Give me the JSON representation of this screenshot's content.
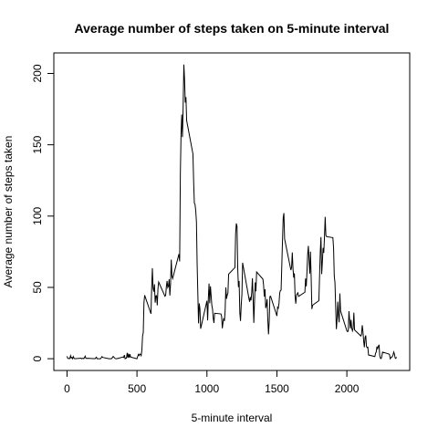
{
  "chart_data": {
    "type": "line",
    "title": "Average number of steps taken on 5-minute interval",
    "x_label": "5-minute interval",
    "y_label": "Average number of steps taken",
    "color": "#000000",
    "x": [
      0,
      5,
      10,
      15,
      20,
      25,
      30,
      35,
      40,
      45,
      50,
      55,
      100,
      105,
      110,
      115,
      120,
      130,
      135,
      140,
      150,
      200,
      210,
      215,
      220,
      230,
      240,
      250,
      255,
      300,
      315,
      320,
      330,
      340,
      345,
      350,
      355,
      400,
      405,
      410,
      415,
      420,
      425,
      430,
      435,
      440,
      445,
      450,
      455,
      500,
      505,
      510,
      515,
      520,
      525,
      530,
      535,
      540,
      545,
      550,
      555,
      600,
      605,
      610,
      615,
      620,
      625,
      630,
      635,
      640,
      645,
      650,
      655,
      700,
      705,
      710,
      715,
      720,
      725,
      730,
      735,
      740,
      745,
      750,
      755,
      800,
      805,
      810,
      815,
      820,
      825,
      830,
      835,
      840,
      845,
      850,
      855,
      900,
      905,
      910,
      915,
      920,
      925,
      930,
      935,
      940,
      945,
      950,
      955,
      1000,
      1005,
      1010,
      1015,
      1020,
      1025,
      1030,
      1035,
      1040,
      1045,
      1050,
      1055,
      1100,
      1105,
      1110,
      1115,
      1120,
      1125,
      1130,
      1135,
      1140,
      1145,
      1150,
      1155,
      1200,
      1205,
      1210,
      1215,
      1220,
      1225,
      1230,
      1235,
      1240,
      1245,
      1250,
      1255,
      1300,
      1305,
      1310,
      1315,
      1320,
      1325,
      1330,
      1335,
      1340,
      1345,
      1350,
      1355,
      1400,
      1405,
      1410,
      1415,
      1420,
      1425,
      1430,
      1435,
      1440,
      1445,
      1450,
      1455,
      1500,
      1505,
      1510,
      1515,
      1520,
      1525,
      1530,
      1535,
      1540,
      1545,
      1550,
      1555,
      1600,
      1605,
      1610,
      1615,
      1620,
      1625,
      1630,
      1635,
      1640,
      1645,
      1650,
      1655,
      1700,
      1705,
      1710,
      1715,
      1720,
      1725,
      1730,
      1735,
      1740,
      1745,
      1750,
      1755,
      1800,
      1805,
      1810,
      1815,
      1820,
      1825,
      1830,
      1835,
      1840,
      1845,
      1850,
      1855,
      1900,
      1905,
      1910,
      1915,
      1920,
      1925,
      1930,
      1935,
      1940,
      1945,
      1950,
      1955,
      2000,
      2005,
      2010,
      2015,
      2020,
      2025,
      2030,
      2035,
      2040,
      2045,
      2050,
      2055,
      2100,
      2105,
      2110,
      2115,
      2120,
      2125,
      2130,
      2135,
      2140,
      2145,
      2150,
      2155,
      2200,
      2205,
      2210,
      2215,
      2220,
      2225,
      2230,
      2235,
      2240,
      2245,
      2250,
      2255,
      2300,
      2305,
      2310,
      2315,
      2320,
      2325,
      2330,
      2335,
      2340,
      2345,
      2350,
      2355
    ],
    "values": [
      1.7,
      0.3,
      0.1,
      0.2,
      0.1,
      2.1,
      0.5,
      0.9,
      0,
      1.5,
      0.4,
      0,
      0.4,
      0,
      0.2,
      0.3,
      0,
      1.8,
      0.2,
      0.2,
      0.3,
      0,
      1.1,
      0,
      0,
      0,
      0,
      1.5,
      0.9,
      0,
      0,
      0.2,
      1.6,
      0.5,
      0.1,
      0,
      0,
      1.2,
      0.9,
      2.6,
      0,
      0.3,
      0.4,
      4.1,
      0.7,
      3.5,
      0.8,
      3.1,
      1.1,
      0,
      1.6,
      3,
      2.2,
      3.3,
      3,
      2.1,
      6.1,
      16,
      18.3,
      39.5,
      44.5,
      31.5,
      49.3,
      63.5,
      49.5,
      47,
      52.2,
      39.3,
      44,
      44.2,
      37.4,
      49,
      53.8,
      43.8,
      44.4,
      50.5,
      54.5,
      49.9,
      51,
      55.7,
      44.3,
      52.3,
      69.5,
      57.8,
      56.2,
      73.4,
      68.2,
      129.4,
      157.5,
      171.2,
      155.4,
      177.3,
      206.2,
      195.9,
      179.6,
      183.4,
      167,
      143.5,
      124,
      109.1,
      108.1,
      103.7,
      95.9,
      66.2,
      45.2,
      24.8,
      38.8,
      35,
      21,
      40.6,
      26.9,
      42.4,
      52.7,
      38.9,
      50.8,
      44.3,
      37.4,
      34.7,
      28.3,
      25.1,
      31.9,
      31.4,
      29.7,
      21.3,
      25.5,
      28.4,
      26.5,
      33.4,
      50,
      42,
      44.6,
      46,
      59.3,
      63.9,
      87.7,
      94.8,
      92.8,
      63.4,
      50.2,
      54.5,
      32.4,
      26.5,
      37.7,
      45.1,
      67.3,
      42.3,
      39.9,
      43.3,
      40.9,
      46.2,
      56.4,
      42.8,
      25.1,
      39.9,
      53.5,
      47.3,
      60.8,
      55.8,
      51.5,
      43.6,
      48.7,
      35.5,
      37.5,
      41.8,
      27.5,
      17.1,
      26.1,
      43.6,
      43.8,
      30,
      36.1,
      35.5,
      38.8,
      46,
      47.8,
      48.1,
      65.3,
      82.9,
      98.7,
      102.1,
      84,
      62.1,
      64.1,
      74.5,
      63.2,
      56.9,
      59.8,
      43.9,
      38.6,
      44.7,
      45.5,
      46.2,
      43.7,
      46.6,
      56.3,
      50.7,
      61.2,
      73.4,
      79.1,
      68.9,
      59.7,
      75.1,
      56.5,
      34.8,
      37.5,
      40.7,
      58,
      74.7,
      85.3,
      59.3,
      67.8,
      77.7,
      74.2,
      85.3,
      99.5,
      86.6,
      85.6,
      84.9,
      77.8,
      58,
      53.4,
      36.3,
      20.7,
      27.4,
      40,
      30.2,
      25.5,
      45.7,
      33.5,
      19.6,
      19,
      19.3,
      33.3,
      26.8,
      21.2,
      27.3,
      21.3,
      19.5,
      21.3,
      32.3,
      20.2,
      15.9,
      17.2,
      23.5,
      19.2,
      12.5,
      8,
      14.7,
      16.3,
      8.7,
      7.8,
      8.1,
      2.6,
      1.5,
      3.7,
      4.8,
      8.5,
      7.1,
      8.7,
      9.8,
      2.2,
      0.3,
      0.1,
      1.6,
      4.6,
      3.3,
      2.8,
      0,
      0.8,
      1,
      1.6,
      2.6,
      4.7,
      3.3,
      0.6,
      0.2,
      1.1
    ],
    "xlim": [
      -94.2,
      2449.2
    ],
    "ylim": [
      -8.25,
      214.4
    ],
    "xticks": [
      0,
      500,
      1000,
      1500,
      2000
    ],
    "yticks": [
      0,
      50,
      100,
      150,
      200
    ]
  }
}
